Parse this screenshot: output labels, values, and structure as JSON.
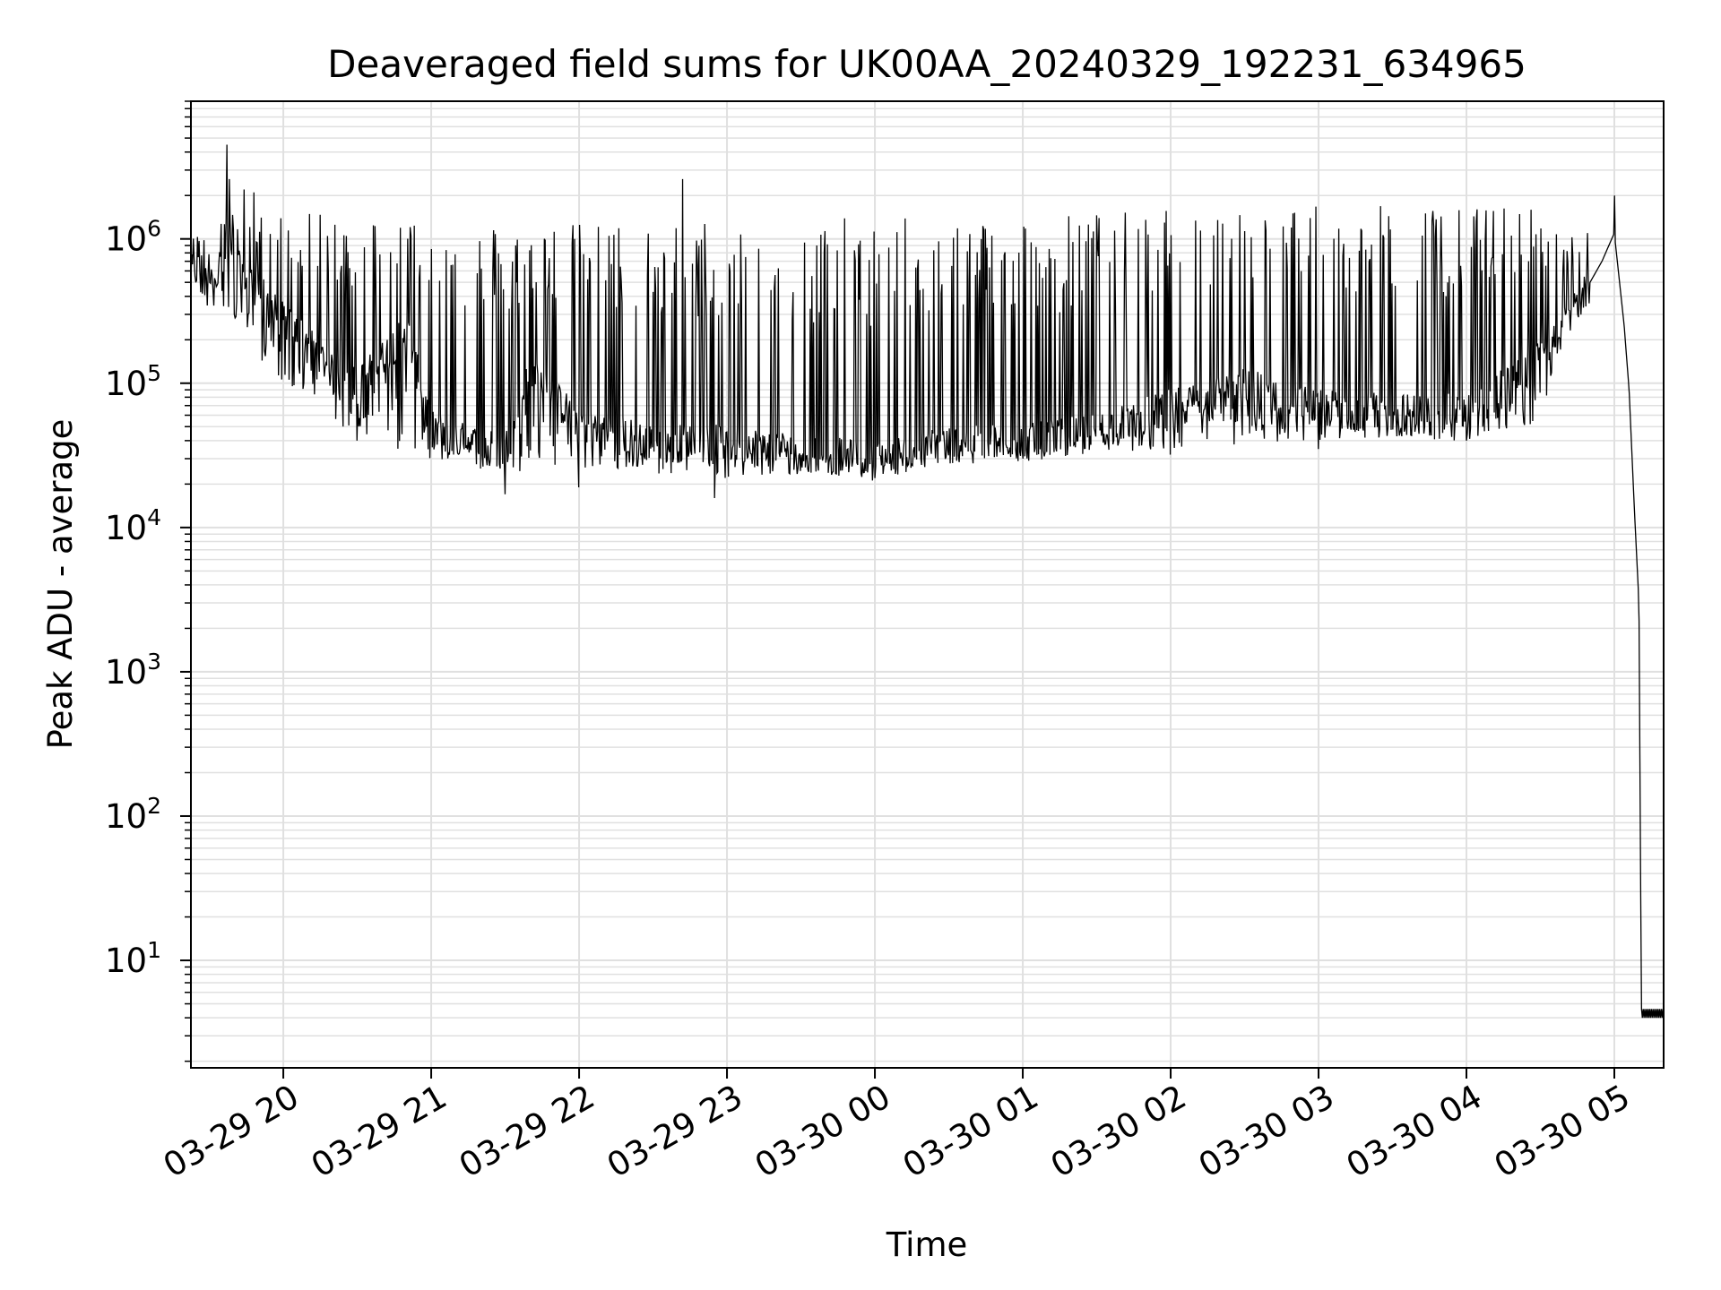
{
  "chart_data": {
    "type": "line",
    "title": "Deaveraged field sums for UK00AA_20240329_192231_634965",
    "xlabel": "Time",
    "ylabel": "Peak ADU - average",
    "yscale": "log",
    "ylim": [
      1.8,
      9000000
    ],
    "xlim": [
      "2024-03-29 19:22:31",
      "2024-03-30 05:20:00"
    ],
    "grid": true,
    "legend": "none",
    "line_color": "#000000",
    "grid_color": "#e0e0e0",
    "x_ticks": [
      {
        "value": "2024-03-29 20:00:00",
        "label": "03-29 20"
      },
      {
        "value": "2024-03-29 21:00:00",
        "label": "03-29 21"
      },
      {
        "value": "2024-03-29 22:00:00",
        "label": "03-29 22"
      },
      {
        "value": "2024-03-29 23:00:00",
        "label": "03-29 23"
      },
      {
        "value": "2024-03-30 00:00:00",
        "label": "03-30 00"
      },
      {
        "value": "2024-03-30 01:00:00",
        "label": "03-30 01"
      },
      {
        "value": "2024-03-30 02:00:00",
        "label": "03-30 02"
      },
      {
        "value": "2024-03-30 03:00:00",
        "label": "03-30 03"
      },
      {
        "value": "2024-03-30 04:00:00",
        "label": "03-30 04"
      },
      {
        "value": "2024-03-30 05:00:00",
        "label": "03-30 05"
      }
    ],
    "y_ticks": [
      {
        "value": 10,
        "base": "10",
        "exp": "1"
      },
      {
        "value": 100,
        "base": "10",
        "exp": "2"
      },
      {
        "value": 1000,
        "base": "10",
        "exp": "3"
      },
      {
        "value": 10000,
        "base": "10",
        "exp": "4"
      },
      {
        "value": 100000,
        "base": "10",
        "exp": "5"
      },
      {
        "value": 1000000,
        "base": "10",
        "exp": "6"
      }
    ],
    "series": [
      {
        "baseline": [
          [
            "2024-03-29 19:22:31",
            600000
          ],
          [
            "2024-03-29 19:30:00",
            650000
          ],
          [
            "2024-03-29 19:40:00",
            700000
          ],
          [
            "2024-03-29 19:50:00",
            450000
          ],
          [
            "2024-03-29 20:00:00",
            280000
          ],
          [
            "2024-03-29 20:10:00",
            200000
          ],
          [
            "2024-03-29 20:20:00",
            120000
          ],
          [
            "2024-03-29 20:30:00",
            100000
          ],
          [
            "2024-03-29 20:40:00",
            150000
          ],
          [
            "2024-03-29 20:50:00",
            250000
          ],
          [
            "2024-03-29 21:00:00",
            50000
          ],
          [
            "2024-03-29 21:15:00",
            40000
          ],
          [
            "2024-03-29 21:30:00",
            35000
          ],
          [
            "2024-03-29 21:40:00",
            120000
          ],
          [
            "2024-03-29 22:00:00",
            55000
          ],
          [
            "2024-03-29 22:30:00",
            40000
          ],
          [
            "2024-03-29 23:00:00",
            40000
          ],
          [
            "2024-03-29 23:30:00",
            35000
          ],
          [
            "2024-03-30 00:00:00",
            30000
          ],
          [
            "2024-03-30 00:30:00",
            40000
          ],
          [
            "2024-03-30 01:00:00",
            40000
          ],
          [
            "2024-03-30 01:30:00",
            48000
          ],
          [
            "2024-03-30 02:00:00",
            70000
          ],
          [
            "2024-03-30 02:30:00",
            100000
          ],
          [
            "2024-03-30 03:00:00",
            70000
          ],
          [
            "2024-03-30 03:30:00",
            65000
          ],
          [
            "2024-03-30 04:00:00",
            65000
          ],
          [
            "2024-03-30 04:30:00",
            150000
          ],
          [
            "2024-03-30 04:45:00",
            350000
          ],
          [
            "2024-03-30 04:55:00",
            700000
          ],
          [
            "2024-03-30 05:00:00",
            1100000
          ],
          [
            "2024-03-30 05:04:00",
            250000
          ],
          [
            "2024-03-30 05:06:00",
            90000
          ],
          [
            "2024-03-30 05:08:00",
            15000
          ],
          [
            "2024-03-30 05:10:00",
            3000
          ],
          [
            "2024-03-30 05:11:00",
            4
          ],
          [
            "2024-03-30 05:20:00",
            4
          ]
        ],
        "peaks": [
          [
            "2024-03-29 19:37:00",
            4500000
          ],
          [
            "2024-03-29 19:38:00",
            2600000
          ],
          [
            "2024-03-29 19:44:00",
            2200000
          ],
          [
            "2024-03-29 19:48:00",
            2100000
          ],
          [
            "2024-03-29 22:42:00",
            2600000
          ],
          [
            "2024-03-30 02:00:00",
            1600000
          ],
          [
            "2024-03-30 05:00:00",
            2000000
          ]
        ],
        "troughs": [
          [
            "2024-03-29 20:30:00",
            40000
          ],
          [
            "2024-03-29 21:30:00",
            17000
          ],
          [
            "2024-03-29 22:00:00",
            19000
          ],
          [
            "2024-03-29 22:55:00",
            16000
          ],
          [
            "2024-03-30 00:00:00",
            22000
          ],
          [
            "2024-03-30 01:00:00",
            30000
          ],
          [
            "2024-03-30 02:00:00",
            32000
          ],
          [
            "2024-03-30 03:00:00",
            35000
          ],
          [
            "2024-03-30 04:00:00",
            40000
          ]
        ],
        "envelope": [
          [
            "2024-03-29 19:22:31",
            300000,
            1000000
          ],
          [
            "2024-03-29 19:35:00",
            350000,
            1500000
          ],
          [
            "2024-03-29 19:50:00",
            150000,
            1500000
          ],
          [
            "2024-03-29 20:00:00",
            100000,
            1500000
          ],
          [
            "2024-03-29 20:30:00",
            40000,
            1500000
          ],
          [
            "2024-03-29 21:00:00",
            30000,
            1400000
          ],
          [
            "2024-03-29 21:30:00",
            22000,
            1300000
          ],
          [
            "2024-03-29 22:00:00",
            25000,
            1300000
          ],
          [
            "2024-03-29 23:00:00",
            22000,
            1400000
          ],
          [
            "2024-03-30 00:00:00",
            24000,
            1400000
          ],
          [
            "2024-03-30 01:00:00",
            30000,
            1500000
          ],
          [
            "2024-03-30 02:00:00",
            35000,
            1600000
          ],
          [
            "2024-03-30 03:00:00",
            40000,
            1700000
          ],
          [
            "2024-03-30 04:00:00",
            40000,
            1700000
          ],
          [
            "2024-03-30 04:30:00",
            50000,
            1700000
          ],
          [
            "2024-03-30 04:40:00",
            300000,
            1200000
          ],
          [
            "2024-03-30 04:50:00",
            500000,
            1100000
          ]
        ]
      }
    ]
  }
}
